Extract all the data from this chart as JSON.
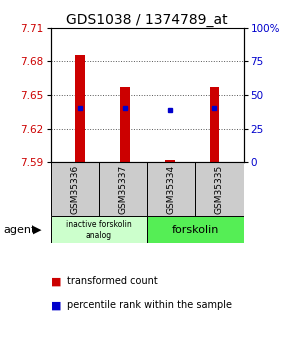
{
  "title": "GDS1038 / 1374789_at",
  "samples": [
    "GSM35336",
    "GSM35337",
    "GSM35334",
    "GSM35335"
  ],
  "bar_bottoms": [
    7.59,
    7.59,
    7.59,
    7.59
  ],
  "bar_tops": [
    7.686,
    7.657,
    7.592,
    7.657
  ],
  "percentile_values": [
    7.638,
    7.638,
    7.637,
    7.638
  ],
  "ylim_left": [
    7.59,
    7.71
  ],
  "ylim_right": [
    0,
    100
  ],
  "yticks_left": [
    7.59,
    7.62,
    7.65,
    7.68,
    7.71
  ],
  "yticks_right": [
    0,
    25,
    50,
    75,
    100
  ],
  "ytick_labels_right": [
    "0",
    "25",
    "50",
    "75",
    "100%"
  ],
  "group1_label": "inactive forskolin\nanalog",
  "group2_label": "forskolin",
  "group1_color": "#ccffcc",
  "group2_color": "#55ee55",
  "bar_color": "#cc0000",
  "dot_color": "#0000cc",
  "left_axis_color": "#cc0000",
  "right_axis_color": "#0000cc",
  "title_fontsize": 10,
  "tick_fontsize": 7.5,
  "legend_fontsize": 7,
  "sample_fontsize": 6.5,
  "agent_label": "agent",
  "gridcolor": "#555555"
}
